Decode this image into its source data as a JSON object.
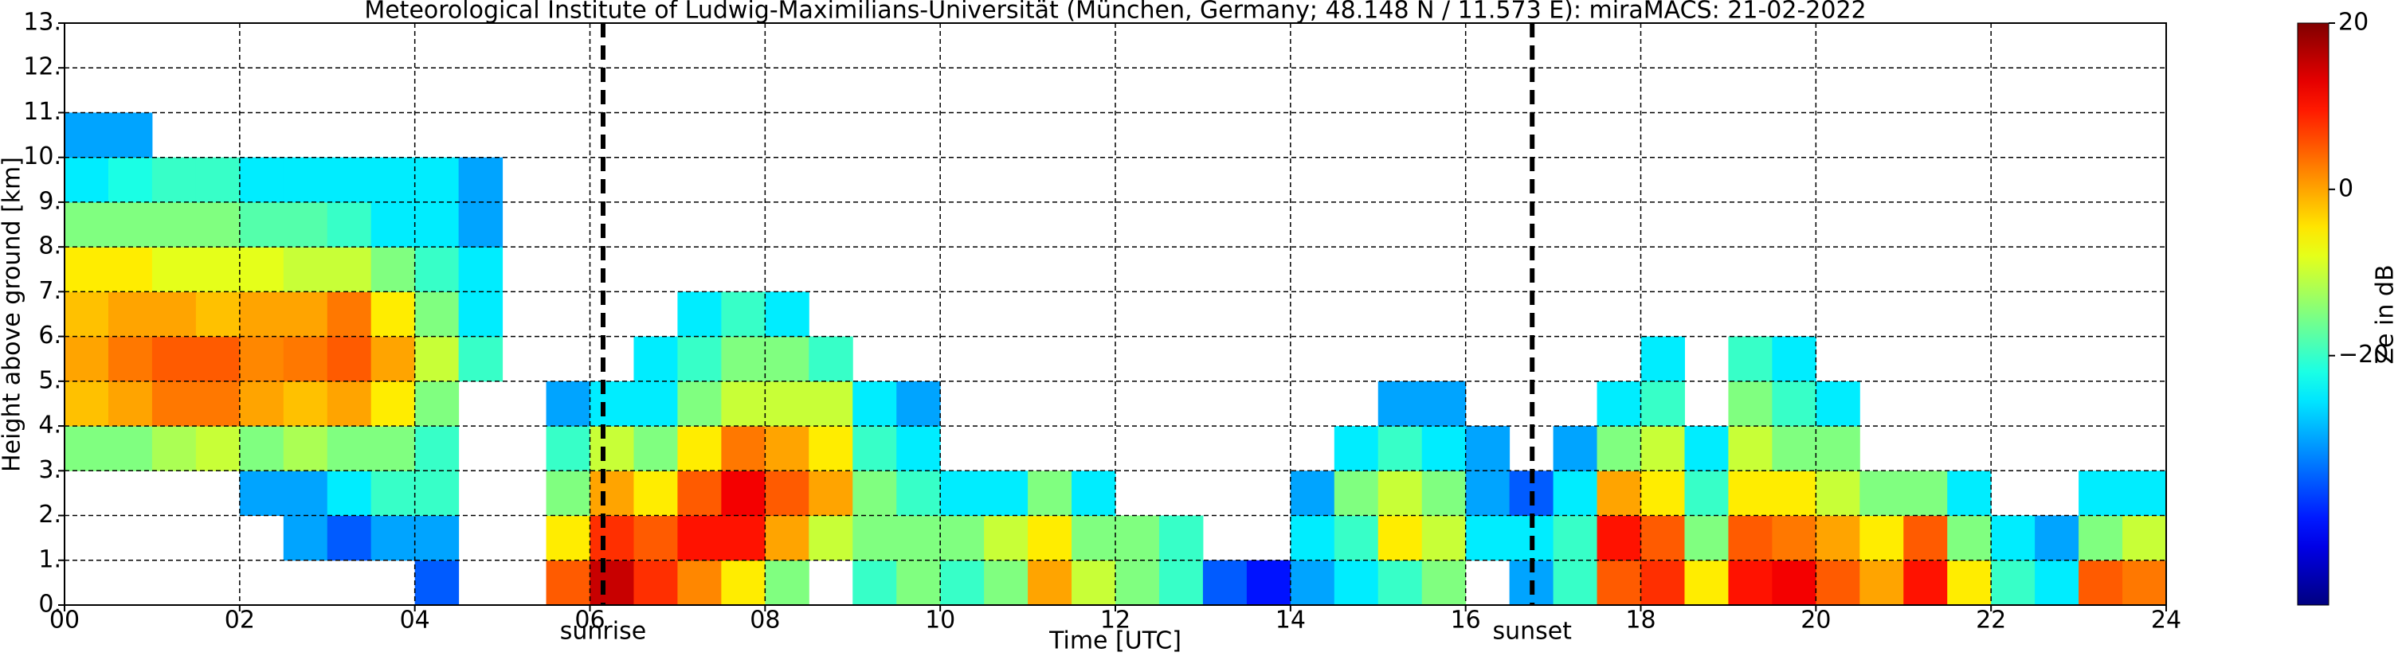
{
  "chart_data": {
    "type": "heatmap",
    "title": "Meteorological Institute of Ludwig-Maximilians-Universität (München, Germany; 48.148 N / 11.573 E):    miraMACS: 21-02-2022",
    "xlabel": "Time [UTC]",
    "ylabel": "Height above ground [km]",
    "colorbar_label": "Ze in dB",
    "xlim": [
      0,
      24
    ],
    "xticks": [
      {
        "value": 0,
        "label": "00"
      },
      {
        "value": 2,
        "label": "02"
      },
      {
        "value": 4,
        "label": "04"
      },
      {
        "value": 6,
        "label": "06"
      },
      {
        "value": 8,
        "label": "08"
      },
      {
        "value": 10,
        "label": "10"
      },
      {
        "value": 12,
        "label": "12"
      },
      {
        "value": 14,
        "label": "14"
      },
      {
        "value": 16,
        "label": "16"
      },
      {
        "value": 18,
        "label": "18"
      },
      {
        "value": 20,
        "label": "20"
      },
      {
        "value": 22,
        "label": "22"
      },
      {
        "value": 24,
        "label": "24"
      }
    ],
    "ylim": [
      0,
      13
    ],
    "yticks": [
      {
        "value": 0,
        "label": "0."
      },
      {
        "value": 1,
        "label": "1."
      },
      {
        "value": 2,
        "label": "2."
      },
      {
        "value": 3,
        "label": "3."
      },
      {
        "value": 4,
        "label": "4."
      },
      {
        "value": 5,
        "label": "5."
      },
      {
        "value": 6,
        "label": "6."
      },
      {
        "value": 7,
        "label": "7."
      },
      {
        "value": 8,
        "label": "8."
      },
      {
        "value": 9,
        "label": "9."
      },
      {
        "value": 10,
        "label": "10."
      },
      {
        "value": 11,
        "label": "11."
      },
      {
        "value": 12,
        "label": "12."
      },
      {
        "value": 13,
        "label": "13."
      }
    ],
    "clim": [
      -50,
      20
    ],
    "cticks": [
      {
        "value": -20,
        "label": "−20"
      },
      0,
      20
    ],
    "colormap": "jet",
    "grid": true,
    "annotations": [
      {
        "text": "sunrise",
        "x": 6.15
      },
      {
        "text": "sunset",
        "x": 16.76
      }
    ],
    "time_bins": [
      0,
      0.5,
      1,
      1.5,
      2,
      2.5,
      3,
      3.5,
      4,
      4.5,
      5,
      5.5,
      6,
      6.5,
      7,
      7.5,
      8,
      8.5,
      9,
      9.5,
      10,
      10.5,
      11,
      11.5,
      12,
      12.5,
      13,
      13.5,
      14,
      14.5,
      15,
      15.5,
      16,
      16.5,
      17,
      17.5,
      18,
      18.5,
      19,
      19.5,
      20,
      20.5,
      21,
      21.5,
      22,
      22.5,
      23,
      23.5,
      24
    ],
    "height_bins": [
      0,
      1,
      2,
      3,
      4,
      5,
      6,
      7,
      8,
      9,
      10,
      11,
      12,
      13
    ],
    "z": [
      [
        null,
        null,
        null,
        -15,
        -2,
        0,
        -2,
        -5,
        -15,
        -25,
        -30,
        null,
        null
      ],
      [
        null,
        null,
        null,
        -15,
        0,
        3,
        0,
        -5,
        -15,
        -22,
        -30,
        null,
        null
      ],
      [
        null,
        null,
        null,
        -12,
        3,
        5,
        0,
        -8,
        -15,
        -20,
        null,
        null,
        null
      ],
      [
        null,
        null,
        null,
        -10,
        3,
        5,
        -2,
        -8,
        -15,
        -20,
        null,
        null,
        null
      ],
      [
        null,
        null,
        -30,
        -15,
        0,
        2,
        0,
        -8,
        -18,
        -25,
        null,
        null,
        null
      ],
      [
        null,
        -30,
        -30,
        -12,
        -2,
        3,
        0,
        -10,
        -18,
        -25,
        null,
        null,
        null
      ],
      [
        null,
        -35,
        -25,
        -15,
        0,
        5,
        3,
        -10,
        -20,
        -25,
        null,
        null,
        null
      ],
      [
        null,
        -30,
        -20,
        -15,
        -5,
        0,
        -5,
        -15,
        -25,
        -25,
        null,
        null,
        null
      ],
      [
        -35,
        -30,
        -20,
        -20,
        -15,
        -10,
        -15,
        -20,
        -25,
        -25,
        null,
        null,
        null
      ],
      [
        null,
        null,
        null,
        null,
        null,
        -20,
        -25,
        -25,
        -30,
        -30,
        null,
        null,
        null
      ],
      [
        null,
        null,
        null,
        null,
        null,
        null,
        null,
        null,
        null,
        null,
        null,
        null,
        null
      ],
      [
        5,
        -5,
        -15,
        -20,
        -30,
        null,
        null,
        null,
        null,
        null,
        null,
        null,
        null
      ],
      [
        15,
        8,
        0,
        -10,
        -25,
        null,
        null,
        null,
        null,
        null,
        null,
        null,
        null
      ],
      [
        8,
        5,
        -5,
        -15,
        -25,
        -25,
        null,
        null,
        null,
        null,
        null,
        null,
        null
      ],
      [
        2,
        10,
        5,
        -5,
        -15,
        -20,
        -25,
        null,
        null,
        null,
        null,
        null,
        null
      ],
      [
        -5,
        10,
        12,
        3,
        -10,
        -15,
        -20,
        null,
        null,
        null,
        null,
        null,
        null
      ],
      [
        -15,
        0,
        5,
        0,
        -10,
        -15,
        -25,
        null,
        null,
        null,
        null,
        null,
        null
      ],
      [
        null,
        -10,
        0,
        -5,
        -10,
        -20,
        null,
        null,
        null,
        null,
        null,
        null,
        null
      ],
      [
        -20,
        -15,
        -15,
        -20,
        -25,
        null,
        null,
        null,
        null,
        null,
        null,
        null,
        null
      ],
      [
        -15,
        -15,
        -20,
        -25,
        -30,
        null,
        null,
        null,
        null,
        null,
        null,
        null,
        null
      ],
      [
        -20,
        -15,
        -25,
        null,
        null,
        null,
        null,
        null,
        null,
        null,
        null,
        null,
        null
      ],
      [
        -15,
        -10,
        -25,
        null,
        null,
        null,
        null,
        null,
        null,
        null,
        null,
        null,
        null
      ],
      [
        0,
        -5,
        -15,
        null,
        null,
        null,
        null,
        null,
        null,
        null,
        null,
        null,
        null
      ],
      [
        -10,
        -15,
        -25,
        null,
        null,
        null,
        null,
        null,
        null,
        null,
        null,
        null,
        null
      ],
      [
        -15,
        -15,
        null,
        null,
        null,
        null,
        null,
        null,
        null,
        null,
        null,
        null,
        null
      ],
      [
        -20,
        -20,
        null,
        null,
        null,
        null,
        null,
        null,
        null,
        null,
        null,
        null,
        null
      ],
      [
        -35,
        null,
        null,
        null,
        null,
        null,
        null,
        null,
        null,
        null,
        null,
        null,
        null
      ],
      [
        -40,
        null,
        null,
        null,
        null,
        null,
        null,
        null,
        null,
        null,
        null,
        null,
        null
      ],
      [
        -30,
        -25,
        -30,
        null,
        null,
        null,
        null,
        null,
        null,
        null,
        null,
        null,
        null
      ],
      [
        -25,
        -20,
        -15,
        -25,
        null,
        null,
        null,
        null,
        null,
        null,
        null,
        null,
        null
      ],
      [
        -20,
        -5,
        -10,
        -20,
        -30,
        null,
        null,
        null,
        null,
        null,
        null,
        null,
        null
      ],
      [
        -15,
        -10,
        -15,
        -25,
        -30,
        null,
        null,
        null,
        null,
        null,
        null,
        null,
        null
      ],
      [
        null,
        -25,
        -30,
        -30,
        null,
        null,
        null,
        null,
        null,
        null,
        null,
        null,
        null
      ],
      [
        -30,
        -25,
        -35,
        null,
        null,
        null,
        null,
        null,
        null,
        null,
        null,
        null,
        null
      ],
      [
        -20,
        -20,
        -25,
        -30,
        null,
        null,
        null,
        null,
        null,
        null,
        null,
        null,
        null
      ],
      [
        5,
        10,
        0,
        -15,
        -25,
        null,
        null,
        null,
        null,
        null,
        null,
        null,
        null
      ],
      [
        8,
        5,
        -5,
        -10,
        -20,
        -25,
        null,
        null,
        null,
        null,
        null,
        null,
        null
      ],
      [
        -5,
        -15,
        -20,
        -25,
        null,
        null,
        null,
        null,
        null,
        null,
        null,
        null,
        null
      ],
      [
        10,
        5,
        -5,
        -10,
        -15,
        -20,
        null,
        null,
        null,
        null,
        null,
        null,
        null
      ],
      [
        12,
        3,
        -5,
        -15,
        -20,
        -25,
        null,
        null,
        null,
        null,
        null,
        null,
        null
      ],
      [
        5,
        0,
        -10,
        -15,
        -25,
        null,
        null,
        null,
        null,
        null,
        null,
        null,
        null
      ],
      [
        0,
        -5,
        -15,
        null,
        null,
        null,
        null,
        null,
        null,
        null,
        null,
        null,
        null
      ],
      [
        10,
        5,
        -15,
        null,
        null,
        null,
        null,
        null,
        null,
        null,
        null,
        null,
        null
      ],
      [
        -5,
        -15,
        -25,
        null,
        null,
        null,
        null,
        null,
        null,
        null,
        null,
        null,
        null
      ],
      [
        -20,
        -25,
        null,
        null,
        null,
        null,
        null,
        null,
        null,
        null,
        null,
        null,
        null
      ],
      [
        -25,
        -30,
        null,
        null,
        null,
        null,
        null,
        null,
        null,
        null,
        null,
        null,
        null
      ],
      [
        5,
        -15,
        -25,
        null,
        null,
        null,
        null,
        null,
        null,
        null,
        null,
        null,
        null
      ],
      [
        3,
        -10,
        -25,
        null,
        null,
        null,
        null,
        null,
        null,
        null,
        null,
        null,
        null
      ]
    ]
  }
}
